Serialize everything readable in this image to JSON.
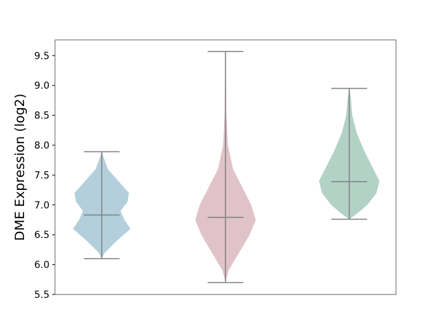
{
  "chart_data": {
    "type": "violin",
    "title": "",
    "xlabel": "",
    "ylabel": "DME Expression (log2)",
    "ylim": [
      5.5,
      9.75
    ],
    "yticks": [
      "5.5",
      "6.0",
      "6.5",
      "7.0",
      "7.5",
      "8.0",
      "8.5",
      "9.0",
      "9.5"
    ],
    "grid": false,
    "series": [
      {
        "color": "#b3cfdc",
        "min": 6.1,
        "median": 6.83,
        "max": 7.89,
        "density": [
          [
            6.1,
            0
          ],
          [
            6.2,
            0.1
          ],
          [
            6.4,
            0.5
          ],
          [
            6.6,
            0.95
          ],
          [
            6.75,
            0.75
          ],
          [
            6.9,
            0.62
          ],
          [
            7.05,
            0.85
          ],
          [
            7.2,
            0.9
          ],
          [
            7.4,
            0.55
          ],
          [
            7.6,
            0.2
          ],
          [
            7.8,
            0.06
          ],
          [
            7.89,
            0
          ]
        ]
      },
      {
        "color": "#e0c3c9",
        "min": 5.7,
        "median": 6.79,
        "max": 9.57,
        "density": [
          [
            5.7,
            0
          ],
          [
            5.9,
            0.1
          ],
          [
            6.2,
            0.45
          ],
          [
            6.5,
            0.8
          ],
          [
            6.75,
            1.0
          ],
          [
            7.0,
            0.85
          ],
          [
            7.3,
            0.55
          ],
          [
            7.6,
            0.25
          ],
          [
            8.0,
            0.08
          ],
          [
            8.5,
            0.03
          ],
          [
            9.0,
            0.02
          ],
          [
            9.57,
            0
          ]
        ]
      },
      {
        "color": "#b2d2c6",
        "min": 6.76,
        "median": 7.39,
        "max": 8.95,
        "density": [
          [
            6.76,
            0
          ],
          [
            6.85,
            0.25
          ],
          [
            7.0,
            0.6
          ],
          [
            7.2,
            0.9
          ],
          [
            7.4,
            1.0
          ],
          [
            7.6,
            0.8
          ],
          [
            7.9,
            0.5
          ],
          [
            8.2,
            0.25
          ],
          [
            8.5,
            0.1
          ],
          [
            8.8,
            0.05
          ],
          [
            8.95,
            0
          ]
        ]
      }
    ]
  }
}
